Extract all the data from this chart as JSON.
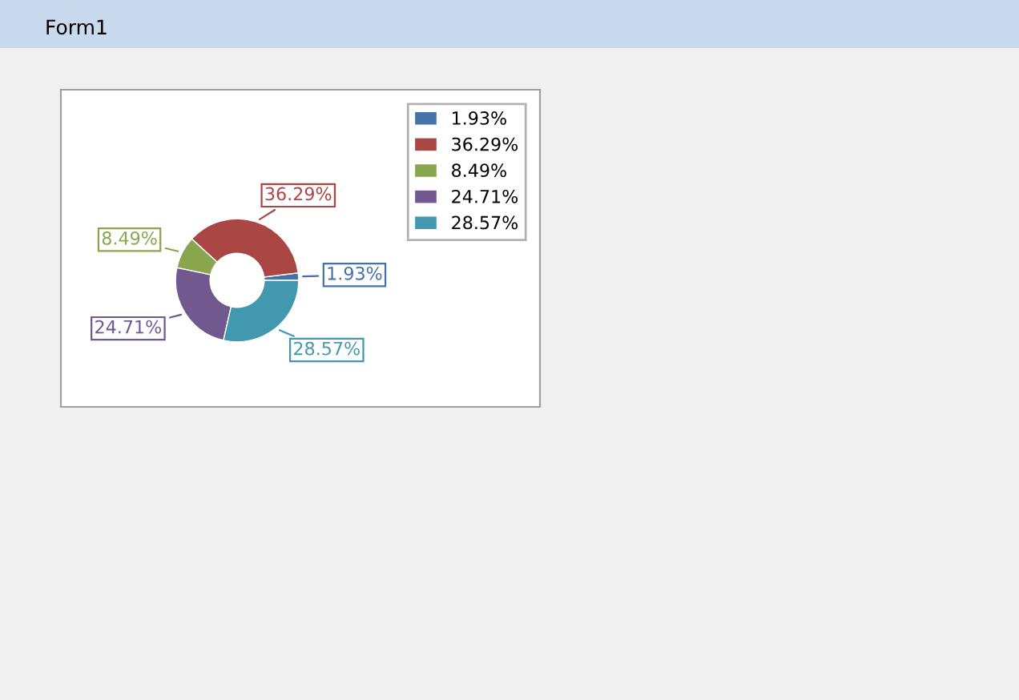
{
  "chart_data": {
    "type": "donut",
    "categories": [
      "1.93%",
      "36.29%",
      "8.49%",
      "24.71%",
      "28.57%"
    ],
    "values": [
      1.93,
      36.29,
      8.49,
      24.71,
      28.57
    ],
    "colors": [
      "#4572a7",
      "#aa4643",
      "#89a54e",
      "#71588f",
      "#4198af"
    ],
    "value_labels": [
      "1.93%",
      "36.29%",
      "8.49%",
      "24.71%",
      "28.57%"
    ],
    "legend": "top right",
    "annotations": [
      "Form1"
    ]
  }
}
